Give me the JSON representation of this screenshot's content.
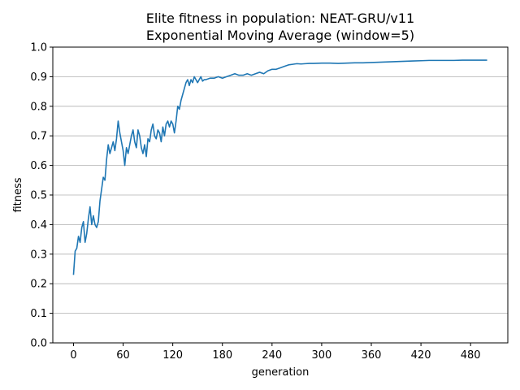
{
  "chart_data": {
    "type": "line",
    "title": "Elite fitness in population: NEAT-GRU/v11",
    "subtitle": "Exponential Moving Average (window=5)",
    "xlabel": "generation",
    "ylabel": "fitness",
    "xlim": [
      -25,
      525
    ],
    "ylim": [
      0.0,
      1.0
    ],
    "xticks": [
      "0",
      "60",
      "120",
      "180",
      "240",
      "300",
      "360",
      "420",
      "480"
    ],
    "yticks": [
      "0.0",
      "0.1",
      "0.2",
      "0.3",
      "0.4",
      "0.5",
      "0.6",
      "0.7",
      "0.8",
      "0.9",
      "1.0"
    ],
    "grid": "horizontal",
    "line_color": "#1f77b4",
    "series": [
      {
        "x": [
          0,
          2,
          4,
          6,
          8,
          10,
          12,
          14,
          16,
          18,
          20,
          22,
          24,
          26,
          28,
          30,
          32,
          34,
          36,
          38,
          40,
          42,
          44,
          46,
          48,
          50,
          52,
          54,
          56,
          58,
          60,
          62,
          64,
          66,
          68,
          70,
          72,
          74,
          76,
          78,
          80,
          82,
          84,
          86,
          88,
          90,
          92,
          94,
          96,
          98,
          100,
          102,
          104,
          106,
          108,
          110,
          112,
          114,
          116,
          118,
          120,
          122,
          124,
          126,
          128,
          130,
          132,
          134,
          136,
          138,
          140,
          142,
          144,
          146,
          148,
          150,
          152,
          154,
          156,
          158,
          160,
          165,
          170,
          175,
          180,
          185,
          190,
          195,
          200,
          205,
          210,
          215,
          220,
          225,
          230,
          235,
          240,
          245,
          250,
          255,
          260,
          265,
          270,
          275,
          280,
          285,
          290,
          300,
          310,
          320,
          330,
          340,
          350,
          360,
          370,
          380,
          390,
          400,
          410,
          420,
          430,
          440,
          450,
          460,
          470,
          480,
          490,
          500
        ],
        "y": [
          0.23,
          0.31,
          0.32,
          0.36,
          0.34,
          0.39,
          0.41,
          0.34,
          0.37,
          0.42,
          0.46,
          0.4,
          0.43,
          0.4,
          0.39,
          0.41,
          0.48,
          0.52,
          0.56,
          0.55,
          0.62,
          0.67,
          0.64,
          0.66,
          0.68,
          0.65,
          0.69,
          0.75,
          0.71,
          0.68,
          0.65,
          0.6,
          0.66,
          0.64,
          0.67,
          0.7,
          0.72,
          0.68,
          0.66,
          0.72,
          0.7,
          0.66,
          0.64,
          0.67,
          0.63,
          0.69,
          0.68,
          0.72,
          0.74,
          0.7,
          0.69,
          0.72,
          0.71,
          0.68,
          0.73,
          0.7,
          0.74,
          0.75,
          0.73,
          0.75,
          0.74,
          0.71,
          0.75,
          0.8,
          0.79,
          0.82,
          0.84,
          0.86,
          0.88,
          0.89,
          0.87,
          0.89,
          0.88,
          0.9,
          0.89,
          0.88,
          0.89,
          0.9,
          0.885,
          0.89,
          0.89,
          0.895,
          0.895,
          0.9,
          0.895,
          0.9,
          0.905,
          0.91,
          0.905,
          0.905,
          0.91,
          0.905,
          0.91,
          0.915,
          0.91,
          0.92,
          0.925,
          0.925,
          0.93,
          0.935,
          0.94,
          0.942,
          0.944,
          0.943,
          0.944,
          0.945,
          0.945,
          0.946,
          0.946,
          0.945,
          0.946,
          0.947,
          0.947,
          0.948,
          0.949,
          0.95,
          0.951,
          0.952,
          0.953,
          0.954,
          0.955,
          0.955,
          0.955,
          0.955,
          0.956,
          0.956,
          0.956,
          0.956
        ]
      }
    ]
  }
}
